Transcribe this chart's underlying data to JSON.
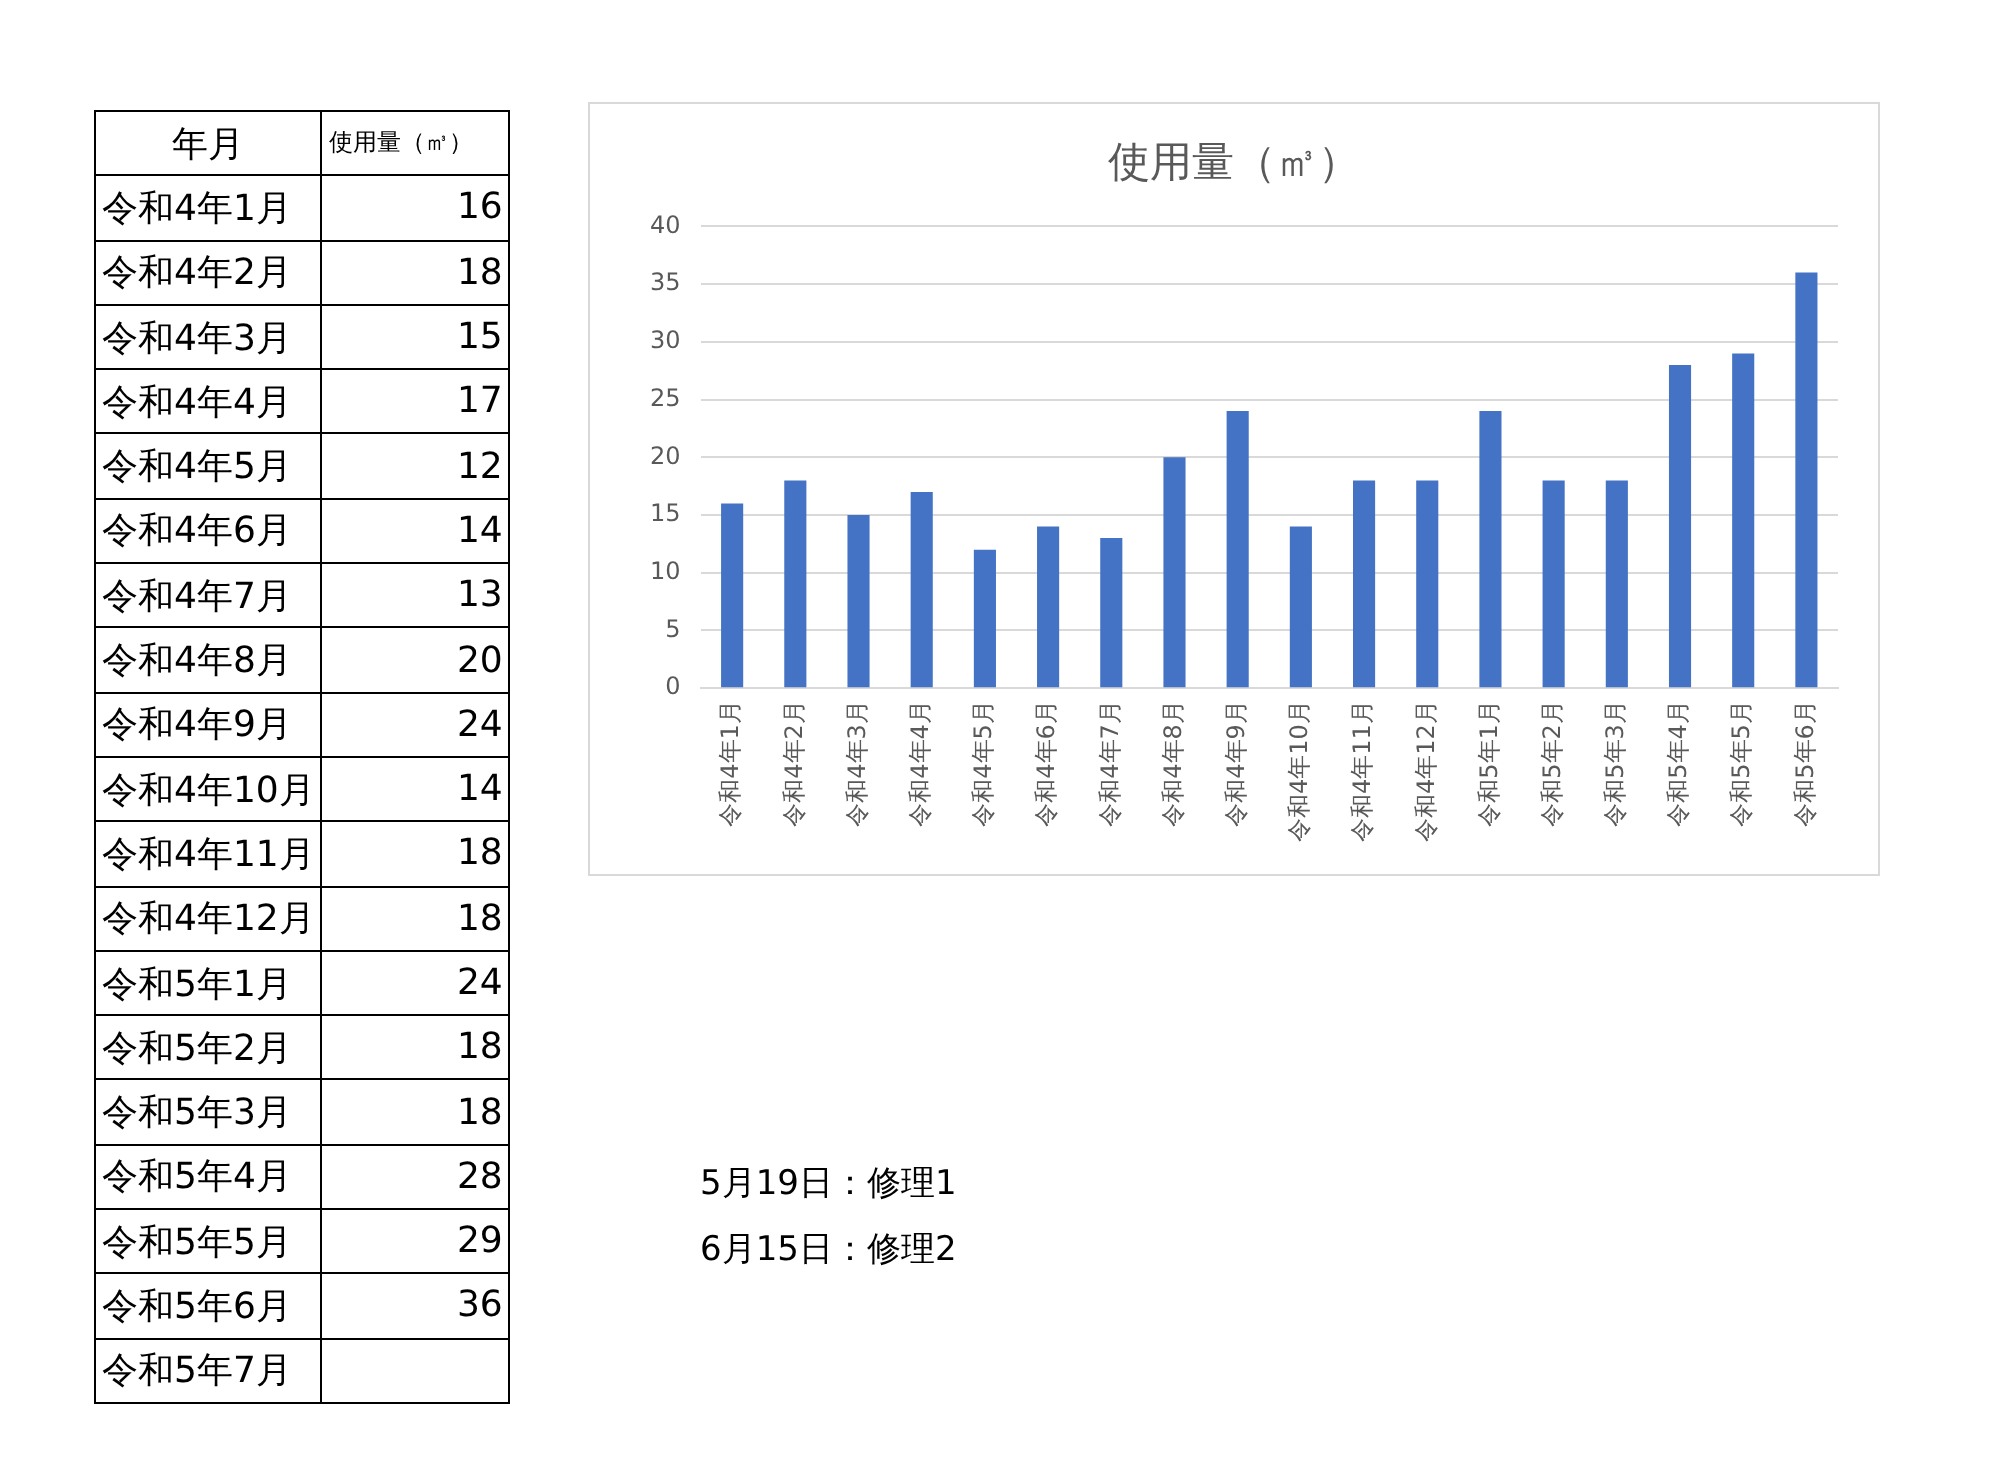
{
  "chart_data": [
    {
      "type": "other",
      "annotations": [
        "年月",
        "使用量（㎥）"
      ],
      "categories": [
        "令和4年1月",
        "令和4年2月",
        "令和4年3月",
        "令和4年4月",
        "令和4年5月",
        "令和4年6月",
        "令和4年7月",
        "令和4年8月",
        "令和4年9月",
        "令和4年10月",
        "令和4年11月",
        "令和4年12月",
        "令和5年1月",
        "令和5年2月",
        "令和5年3月",
        "令和5年4月",
        "令和5年5月",
        "令和5年6月",
        "令和5年7月"
      ],
      "values": [
        16,
        18,
        15,
        17,
        12,
        14,
        13,
        20,
        24,
        14,
        18,
        18,
        24,
        18,
        18,
        28,
        29,
        36,
        null
      ],
      "data_labels": true
    },
    {
      "type": "bar",
      "title": "使用量（㎥）",
      "categories": [
        "令和4年1月",
        "令和4年2月",
        "令和4年3月",
        "令和4年4月",
        "令和4年5月",
        "令和4年6月",
        "令和4年7月",
        "令和4年8月",
        "令和4年9月",
        "令和4年10月",
        "令和4年11月",
        "令和4年12月",
        "令和5年1月",
        "令和5年2月",
        "令和5年3月",
        "令和5年4月",
        "令和5年5月",
        "令和5年6月"
      ],
      "values": [
        16,
        18,
        15,
        17,
        12,
        14,
        13,
        20,
        24,
        14,
        18,
        18,
        24,
        18,
        18,
        28,
        29,
        36
      ],
      "color": "#4472c4",
      "ylim": [
        0,
        40
      ],
      "yticks": [
        0,
        5,
        10,
        15,
        20,
        25,
        30,
        35,
        40
      ],
      "grid": "y",
      "legend": false,
      "annotations": [
        "5月19日：修理1",
        "6月15日：修理2"
      ]
    }
  ]
}
